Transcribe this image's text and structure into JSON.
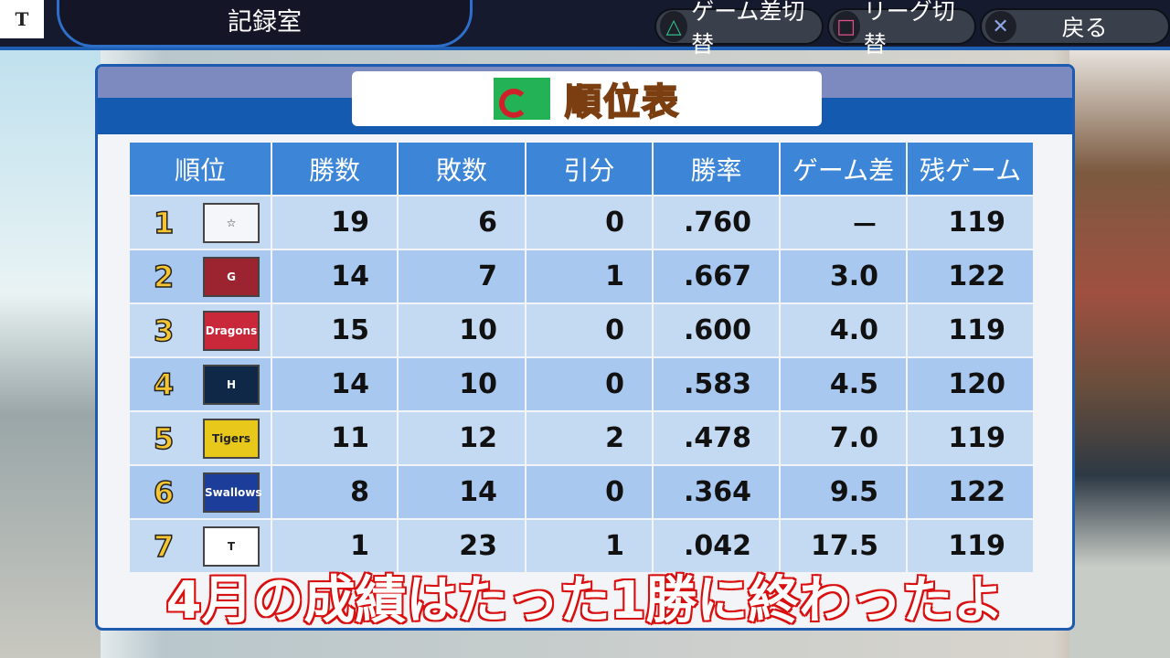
{
  "header": {
    "corner_logo": "T",
    "title": "記録室"
  },
  "buttons": [
    {
      "icon": "△",
      "icon_name": "triangle-icon",
      "icon_color": "#2fbf8a",
      "label": "ゲーム差切替"
    },
    {
      "icon": "□",
      "icon_name": "square-icon",
      "icon_color": "#e0508c",
      "label": "リーグ切替"
    },
    {
      "icon": "✕",
      "icon_name": "cross-icon",
      "icon_color": "#8fa6e6",
      "label": "戻る"
    }
  ],
  "panel": {
    "title": "順位表"
  },
  "table": {
    "headers": [
      "順位",
      "勝数",
      "敗数",
      "引分",
      "勝率",
      "ゲーム差",
      "残ゲーム"
    ],
    "rows": [
      {
        "rank": "1",
        "team_logo": "☆",
        "logo_bg": "#f4f6fa",
        "w": "19",
        "l": "6",
        "d": "0",
        "pct": ".760",
        "gb": "－",
        "rem": "119"
      },
      {
        "rank": "2",
        "team_logo": "G",
        "logo_bg": "#9b2430",
        "w": "14",
        "l": "7",
        "d": "1",
        "pct": ".667",
        "gb": "3.0",
        "rem": "122"
      },
      {
        "rank": "3",
        "team_logo": "Dragons",
        "logo_bg": "#c8283a",
        "w": "15",
        "l": "10",
        "d": "0",
        "pct": ".600",
        "gb": "4.0",
        "rem": "119"
      },
      {
        "rank": "4",
        "team_logo": "H",
        "logo_bg": "#102848",
        "w": "14",
        "l": "10",
        "d": "0",
        "pct": ".583",
        "gb": "4.5",
        "rem": "120"
      },
      {
        "rank": "5",
        "team_logo": "Tigers",
        "logo_bg": "#e8c81a",
        "w": "11",
        "l": "12",
        "d": "2",
        "pct": ".478",
        "gb": "7.0",
        "rem": "119"
      },
      {
        "rank": "6",
        "team_logo": "Swallows",
        "logo_bg": "#1c3e9a",
        "w": "8",
        "l": "14",
        "d": "0",
        "pct": ".364",
        "gb": "9.5",
        "rem": "122"
      },
      {
        "rank": "7",
        "team_logo": "T",
        "logo_bg": "#ffffff",
        "w": "1",
        "l": "23",
        "d": "1",
        "pct": ".042",
        "gb": "17.5",
        "rem": "119"
      }
    ]
  },
  "subtitle": "4月の成績はたった1勝に終わったよ"
}
